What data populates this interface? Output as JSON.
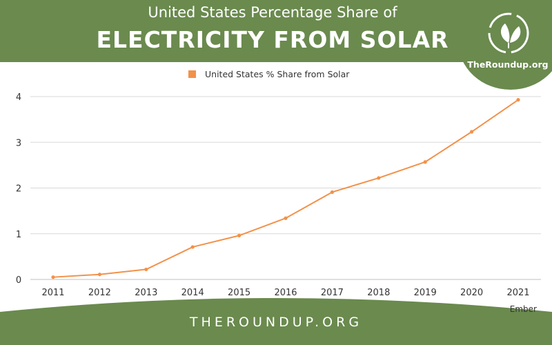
{
  "header": {
    "title_line1": "United States Percentage Share of",
    "title_line2": "ELECTRICITY FROM SOLAR"
  },
  "logo": {
    "text": "TheRoundup.org",
    "icon": "leaf-recycle-icon"
  },
  "footer": {
    "text": "THEROUNDUP.ORG"
  },
  "source": "Ember",
  "colors": {
    "brand_green": "#6a8a4e",
    "series_orange": "#f39149",
    "grid": "#d9d9d9"
  },
  "chart_data": {
    "type": "line",
    "x": [
      "2011",
      "2012",
      "2013",
      "2014",
      "2015",
      "2016",
      "2017",
      "2018",
      "2019",
      "2020",
      "2021"
    ],
    "series": [
      {
        "name": "United States % Share from Solar",
        "values": [
          0.05,
          0.11,
          0.22,
          0.71,
          0.96,
          1.34,
          1.91,
          2.22,
          2.57,
          3.23,
          3.93
        ]
      }
    ],
    "title": "",
    "xlabel": "",
    "ylabel": "",
    "ylim": [
      0,
      4
    ],
    "yticks": [
      "0",
      "1",
      "2",
      "3",
      "4"
    ],
    "grid": true,
    "legend": "top-center"
  }
}
